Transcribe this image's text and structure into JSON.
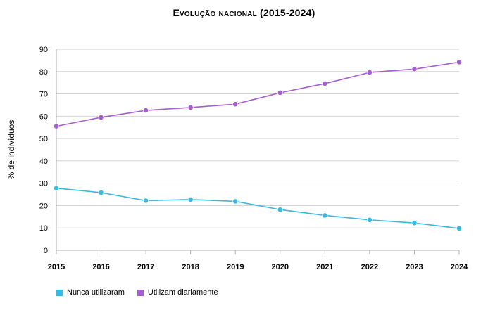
{
  "chart_data": {
    "type": "line",
    "title": "Evolução nacional (2015-2024)",
    "xlabel": "",
    "ylabel": "% de indivíduos",
    "ylim": [
      0,
      90
    ],
    "yticks": [
      0,
      10,
      20,
      30,
      40,
      50,
      60,
      70,
      80,
      90
    ],
    "categories": [
      "2015",
      "2016",
      "2017",
      "2018",
      "2019",
      "2020",
      "2021",
      "2022",
      "2023",
      "2024"
    ],
    "legend_position": "bottom-left",
    "series": [
      {
        "name": "Nunca utilizaram",
        "color": "#3db8e0",
        "values": [
          27.8,
          25.8,
          22.2,
          22.7,
          21.9,
          18.2,
          15.6,
          13.6,
          12.2,
          9.8
        ]
      },
      {
        "name": "Utilizam diariamente",
        "color": "#a65fd0",
        "values": [
          55.5,
          59.5,
          62.6,
          63.9,
          65.4,
          70.5,
          74.6,
          79.6,
          81.1,
          84.2
        ]
      }
    ]
  }
}
